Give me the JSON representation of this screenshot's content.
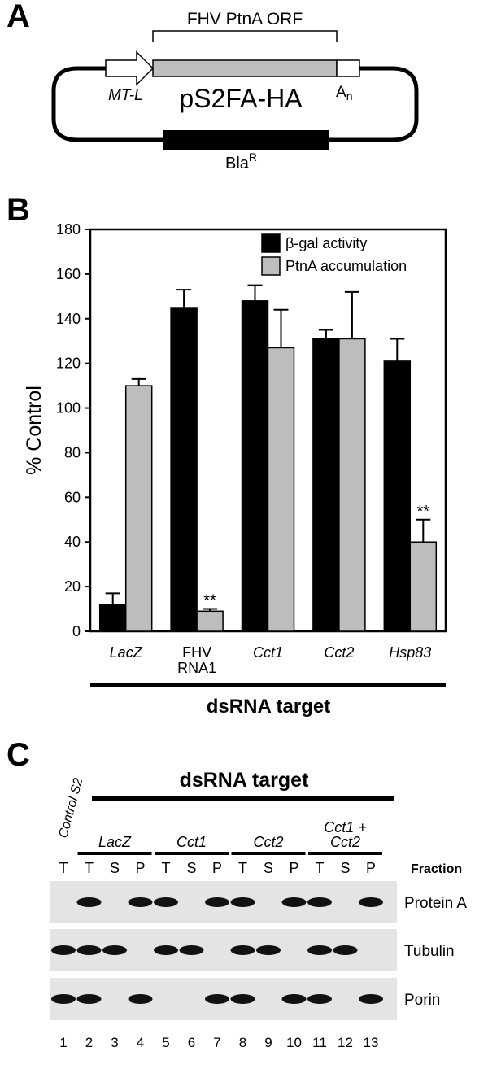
{
  "panel_a": {
    "letter": "A",
    "orf_label": "FHV PtnA ORF",
    "promoter_label": "MT-L",
    "plasmid_name": "pS2FA-HA",
    "polya_label": "A",
    "polya_sub": "n",
    "resistance_label": "Bla",
    "resistance_sup": "R"
  },
  "panel_b": {
    "letter": "B",
    "bottom_label": "dsRNA target",
    "significance_mark": "**"
  },
  "chart_data": {
    "type": "bar",
    "categories": [
      "LacZ",
      "FHV RNA1",
      "Cct1",
      "Cct2",
      "Hsp83"
    ],
    "category_lines": [
      [
        "LacZ"
      ],
      [
        "FHV",
        "RNA1"
      ],
      [
        "Cct1"
      ],
      [
        "Cct2"
      ],
      [
        "Hsp83"
      ]
    ],
    "category_italic": [
      true,
      false,
      true,
      true,
      true
    ],
    "series": [
      {
        "name": "β-gal activity",
        "color": "#000000",
        "values": [
          12,
          145,
          148,
          131,
          121
        ],
        "errors": [
          5,
          8,
          7,
          4,
          10
        ]
      },
      {
        "name": "PtnA accumulation",
        "color": "#bdbdbd",
        "values": [
          110,
          9,
          127,
          131,
          40
        ],
        "errors": [
          3,
          1,
          17,
          21,
          10
        ]
      }
    ],
    "ylabel": "% Control",
    "ylim": [
      0,
      180
    ],
    "yticks": [
      0,
      20,
      40,
      60,
      80,
      100,
      120,
      140,
      160,
      180
    ],
    "legend_position": "top-right",
    "grid": false,
    "annotations": [
      {
        "category": "FHV RNA1",
        "series": "PtnA accumulation",
        "text": "**"
      },
      {
        "category": "Hsp83",
        "series": "PtnA accumulation",
        "text": "**"
      }
    ]
  },
  "panel_c": {
    "letter": "C",
    "control_label": "Control S2",
    "dsrna_title": "dsRNA target",
    "groups": [
      {
        "label": "LacZ",
        "lines": [
          "LacZ"
        ]
      },
      {
        "label": "Cct1",
        "lines": [
          "Cct1"
        ]
      },
      {
        "label": "Cct2",
        "lines": [
          "Cct2"
        ]
      },
      {
        "label": "Cct1 + Cct2",
        "lines": [
          "Cct1 +",
          "Cct2"
        ]
      }
    ],
    "fractions": [
      "T",
      "T",
      "S",
      "P",
      "T",
      "S",
      "P",
      "T",
      "S",
      "P",
      "T",
      "S",
      "P"
    ],
    "fraction_label": "Fraction",
    "blots": [
      {
        "name": "Protein A",
        "bands": [
          0,
          1,
          0,
          1,
          1,
          0,
          1,
          1,
          0,
          1,
          1,
          0,
          1
        ]
      },
      {
        "name": "Tubulin",
        "bands": [
          1,
          1,
          1,
          0,
          1,
          1,
          0,
          1,
          1,
          0,
          1,
          1,
          0
        ]
      },
      {
        "name": "Porin",
        "bands": [
          1,
          1,
          0,
          1,
          0,
          0,
          1,
          1,
          0,
          1,
          1,
          0,
          1
        ]
      }
    ],
    "lanes": [
      "1",
      "2",
      "3",
      "4",
      "5",
      "6",
      "7",
      "8",
      "9",
      "10",
      "11",
      "12",
      "13"
    ]
  }
}
